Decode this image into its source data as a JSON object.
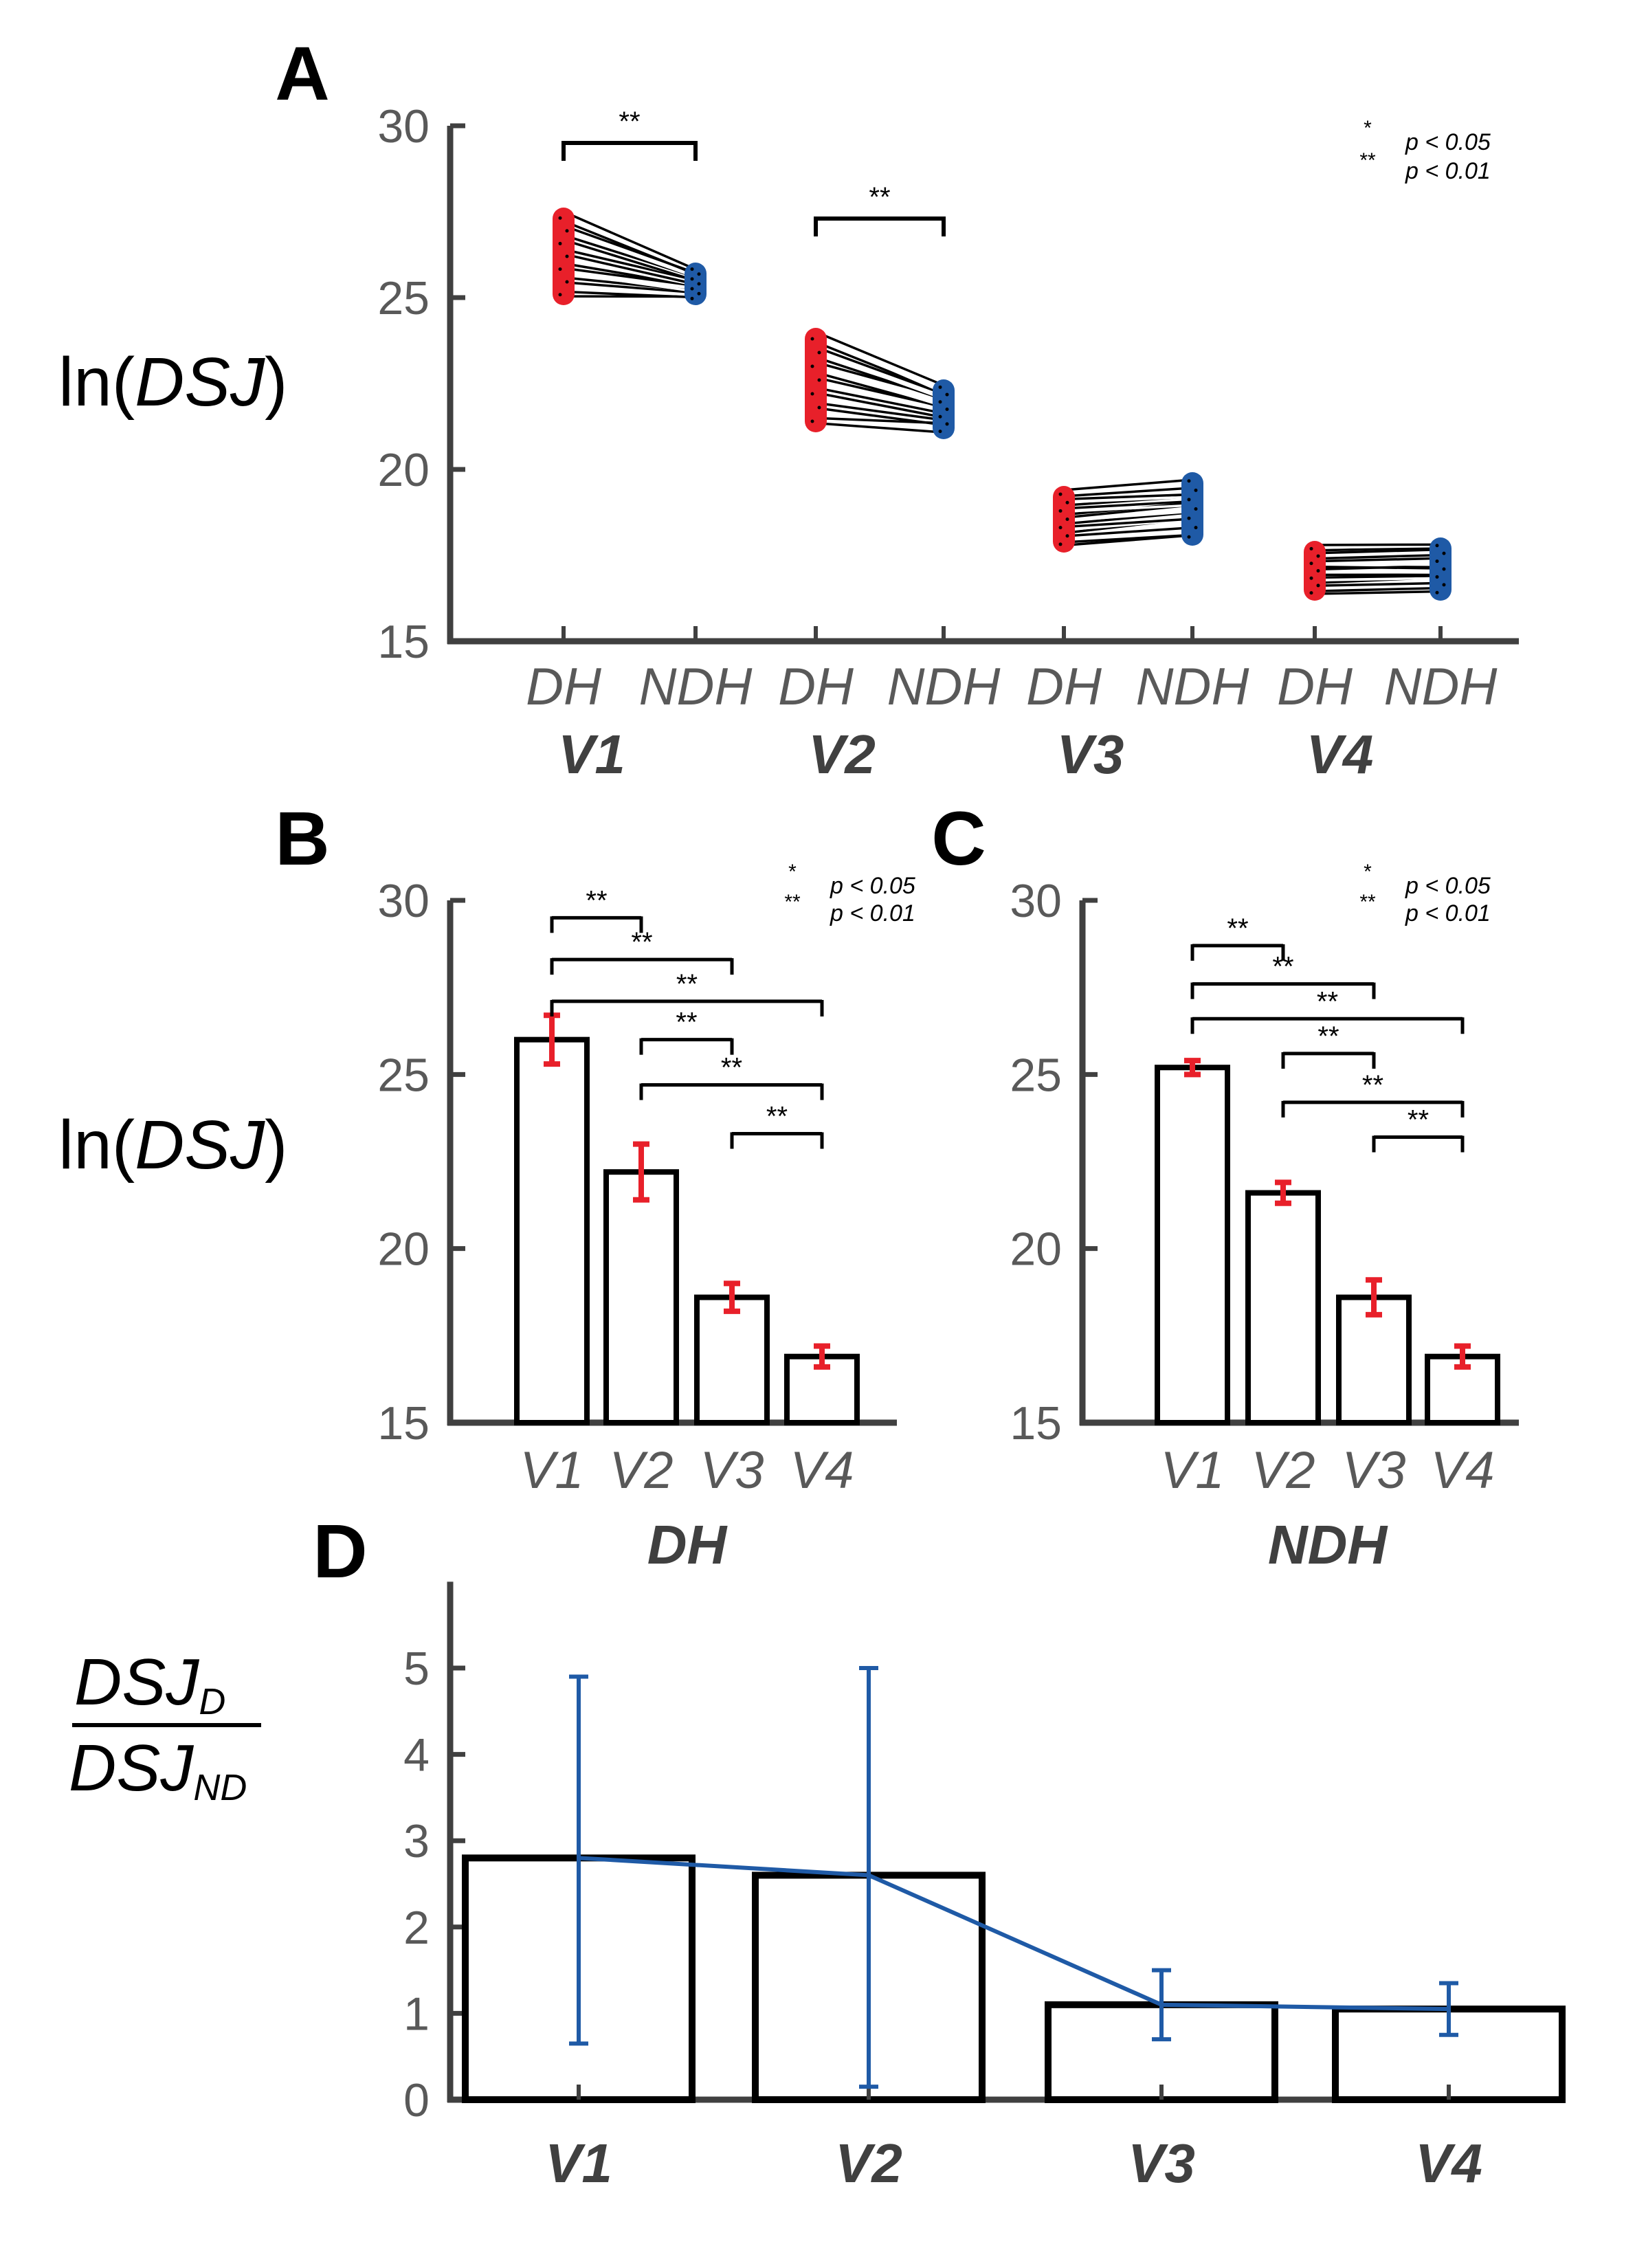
{
  "chart_data": [
    {
      "id": "A",
      "panel_label": "A",
      "type": "paired-scatter",
      "ylabel_prefix": "ln(",
      "ylabel_var": "DSJ",
      "ylabel_suffix": ")",
      "ylim": [
        15,
        30
      ],
      "yticks": [
        15,
        20,
        25,
        30
      ],
      "groups": [
        {
          "name": "V1",
          "conditions": [
            "DH",
            "NDH"
          ],
          "DH_range": [
            24.9,
            27.5
          ],
          "NDH_range": [
            24.9,
            25.9
          ],
          "DH_mean": 26.0,
          "NDH_mean": 25.3
        },
        {
          "name": "V2",
          "conditions": [
            "DH",
            "NDH"
          ],
          "DH_range": [
            21.2,
            24.0
          ],
          "NDH_range": [
            21.0,
            22.5
          ],
          "DH_mean": 22.3,
          "NDH_mean": 21.7
        },
        {
          "name": "V3",
          "conditions": [
            "DH",
            "NDH"
          ],
          "DH_range": [
            17.7,
            19.4
          ],
          "NDH_range": [
            17.9,
            19.8
          ],
          "DH_mean": 18.5,
          "NDH_mean": 18.7
        },
        {
          "name": "V4",
          "conditions": [
            "DH",
            "NDH"
          ],
          "DH_range": [
            16.3,
            17.8
          ],
          "NDH_range": [
            16.3,
            17.9
          ],
          "DH_mean": 16.9,
          "NDH_mean": 17.1
        }
      ],
      "colors": {
        "DH": "#e8202a",
        "NDH": "#1f5aa6"
      },
      "significance": [
        {
          "group": "V1",
          "label": "**",
          "y": 29.5
        },
        {
          "group": "V2",
          "label": "**",
          "y": 27.3
        }
      ],
      "legend": [
        {
          "stars": "*",
          "text": "p < 0.05"
        },
        {
          "stars": "**",
          "text": "p < 0.01"
        }
      ]
    },
    {
      "id": "B",
      "panel_label": "B",
      "type": "bar",
      "group_label": "DH",
      "ylabel_prefix": "ln(",
      "ylabel_var": "DSJ",
      "ylabel_suffix": ")",
      "ylim": [
        15,
        30
      ],
      "yticks": [
        15,
        20,
        25,
        30
      ],
      "categories": [
        "V1",
        "V2",
        "V3",
        "V4"
      ],
      "values": [
        26.0,
        22.2,
        18.6,
        16.9
      ],
      "errors": [
        0.7,
        0.8,
        0.4,
        0.3
      ],
      "error_color": "#e8202a",
      "significance": [
        {
          "from": 0,
          "to": 1,
          "label": "**",
          "y": 29.5
        },
        {
          "from": 0,
          "to": 2,
          "label": "**",
          "y": 28.3
        },
        {
          "from": 0,
          "to": 3,
          "label": "**",
          "y": 27.1
        },
        {
          "from": 1,
          "to": 2,
          "label": "**",
          "y": 26.0
        },
        {
          "from": 1,
          "to": 3,
          "label": "**",
          "y": 24.7
        },
        {
          "from": 2,
          "to": 3,
          "label": "**",
          "y": 23.3
        }
      ],
      "legend": [
        {
          "stars": "*",
          "text": "p < 0.05"
        },
        {
          "stars": "**",
          "text": "p < 0.01"
        }
      ]
    },
    {
      "id": "C",
      "panel_label": "C",
      "type": "bar",
      "group_label": "NDH",
      "ylim": [
        15,
        30
      ],
      "yticks": [
        15,
        20,
        25,
        30
      ],
      "categories": [
        "V1",
        "V2",
        "V3",
        "V4"
      ],
      "values": [
        25.2,
        21.6,
        18.6,
        16.9
      ],
      "errors": [
        0.2,
        0.3,
        0.5,
        0.3
      ],
      "error_color": "#e8202a",
      "significance": [
        {
          "from": 0,
          "to": 1,
          "label": "**",
          "y": 28.7
        },
        {
          "from": 0,
          "to": 2,
          "label": "**",
          "y": 27.6
        },
        {
          "from": 0,
          "to": 3,
          "label": "**",
          "y": 26.6
        },
        {
          "from": 1,
          "to": 2,
          "label": "**",
          "y": 25.6
        },
        {
          "from": 1,
          "to": 3,
          "label": "**",
          "y": 24.2
        },
        {
          "from": 2,
          "to": 3,
          "label": "**",
          "y": 23.2
        }
      ],
      "legend": [
        {
          "stars": "*",
          "text": "p < 0.05"
        },
        {
          "stars": "**",
          "text": "p < 0.01"
        }
      ]
    },
    {
      "id": "D",
      "panel_label": "D",
      "type": "bar",
      "ylabel_num": "DSJ",
      "ylabel_num_sub": "D",
      "ylabel_den": "DSJ",
      "ylabel_den_sub": "ND",
      "ylim": [
        0,
        6
      ],
      "yticks": [
        0,
        1,
        2,
        3,
        4,
        5
      ],
      "categories": [
        "V1",
        "V2",
        "V3",
        "V4"
      ],
      "values": [
        2.8,
        2.6,
        1.1,
        1.05
      ],
      "error_low": [
        0.65,
        0.15,
        0.7,
        0.75
      ],
      "error_high": [
        4.9,
        5.0,
        1.5,
        1.35
      ],
      "line_color": "#1f5aa6"
    }
  ]
}
